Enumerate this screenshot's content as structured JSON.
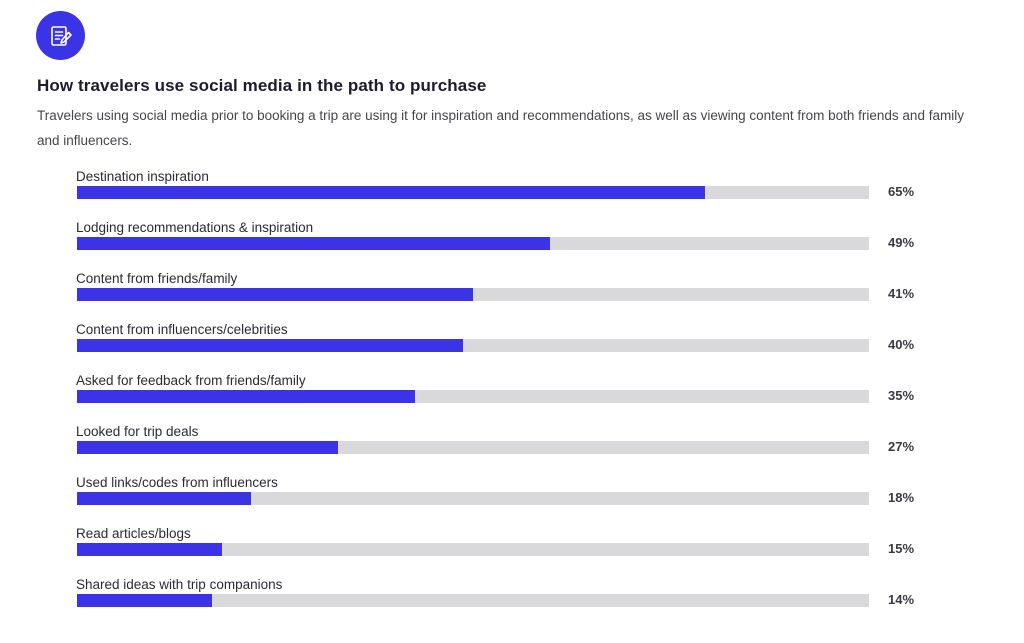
{
  "header": {
    "icon": "clipboard-pencil-icon",
    "title": "How travelers use social media in the path to purchase",
    "subtitle": "Travelers using social media prior to booking a trip are using it for inspiration and recommendations, as well as viewing content from both friends and family and influencers."
  },
  "colors": {
    "accent": "#3a34e6",
    "track": "#d9d9dc"
  },
  "chart_data": {
    "type": "bar",
    "orientation": "horizontal",
    "title": "How travelers use social media in the path to purchase",
    "xlim": [
      0,
      82
    ],
    "categories": [
      "Destination inspiration",
      "Lodging recommendations & inspiration",
      "Content from friends/family",
      "Content from influencers/celebrities",
      "Asked for feedback from friends/family",
      "Looked for trip deals",
      "Used links/codes from influencers",
      "Read articles/blogs",
      "Shared ideas with trip companions"
    ],
    "values": [
      65,
      49,
      41,
      40,
      35,
      27,
      18,
      15,
      14
    ],
    "value_labels": [
      "65%",
      "49%",
      "41%",
      "40%",
      "35%",
      "27%",
      "18%",
      "15%",
      "14%"
    ],
    "grid": false
  }
}
